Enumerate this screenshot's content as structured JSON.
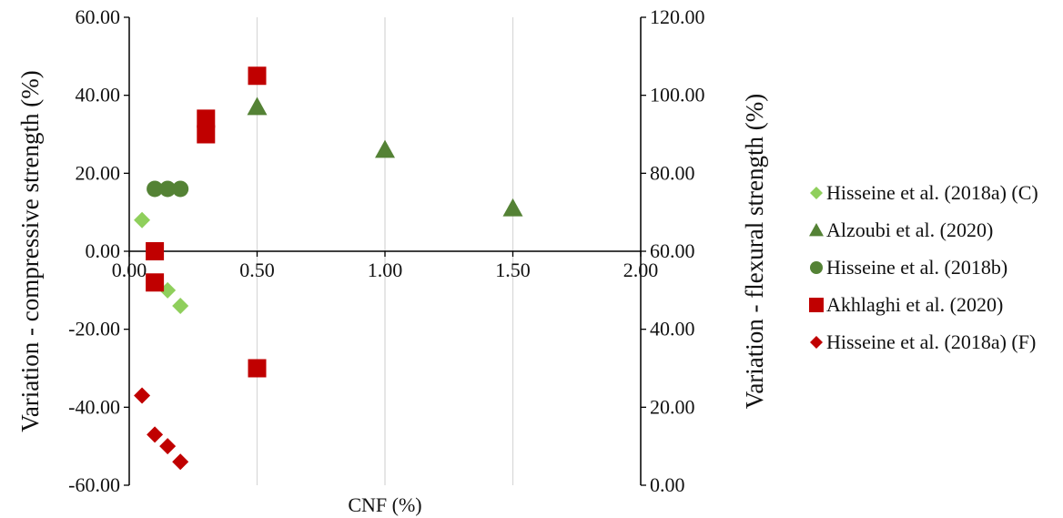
{
  "chart_data": {
    "type": "scatter",
    "title": "",
    "xlabel": "CNF (%)",
    "ylabel_left": "Variation - compressive strength (%)",
    "ylabel_right": "Variation - flexural strength (%)",
    "xlim": [
      0,
      2
    ],
    "ylim_left": [
      -60,
      60
    ],
    "ylim_right": [
      0,
      120
    ],
    "x_ticks": [
      "0.00",
      "0.50",
      "1.00",
      "1.50",
      "2.00"
    ],
    "y_ticks_left": [
      "60.00",
      "40.00",
      "20.00",
      "0.00",
      "-20.00",
      "-40.00",
      "-60.00"
    ],
    "y_ticks_right": [
      "120.00",
      "100.00",
      "80.00",
      "60.00",
      "40.00",
      "20.00",
      "0.00"
    ],
    "grid": "vertical",
    "legend_position": "right",
    "series": [
      {
        "name": "Hisseine et al. (2018a) (C)",
        "marker": "diamond",
        "color": "#8fcf5c",
        "axis": "left",
        "points": [
          [
            0.05,
            8
          ],
          [
            0.15,
            -10
          ],
          [
            0.2,
            -14
          ]
        ]
      },
      {
        "name": "Alzoubi et al. (2020)",
        "marker": "triangle",
        "color": "#548235",
        "axis": "left",
        "points": [
          [
            0.5,
            37
          ],
          [
            1.0,
            26
          ],
          [
            1.5,
            11
          ]
        ]
      },
      {
        "name": "Hisseine et al. (2018b)",
        "marker": "circle",
        "color": "#548235",
        "axis": "left",
        "points": [
          [
            0.1,
            16
          ],
          [
            0.15,
            16
          ],
          [
            0.2,
            16
          ]
        ]
      },
      {
        "name": "Akhlaghi et al. (2020)",
        "marker": "square",
        "color": "#c00000",
        "axis": "left",
        "points": [
          [
            0.1,
            0
          ],
          [
            0.1,
            -8
          ],
          [
            0.3,
            30
          ],
          [
            0.3,
            34
          ],
          [
            0.5,
            45
          ],
          [
            0.5,
            -30
          ]
        ]
      },
      {
        "name": "Hisseine et al. (2018a) (F)",
        "marker": "diamond",
        "color": "#c00000",
        "axis": "left",
        "points": [
          [
            0.05,
            -37
          ],
          [
            0.1,
            -47
          ],
          [
            0.15,
            -50
          ],
          [
            0.2,
            -54
          ]
        ]
      }
    ]
  }
}
